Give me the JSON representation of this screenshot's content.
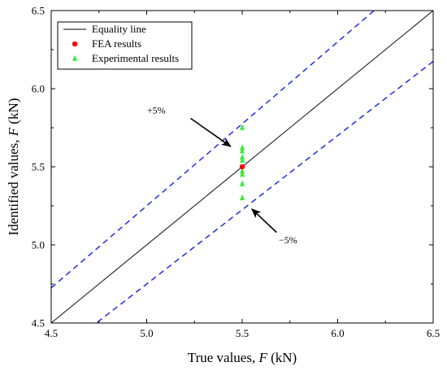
{
  "chart_data": {
    "type": "scatter",
    "xlabel": {
      "prefix": "True values, ",
      "var": "F",
      "suffix": " (kN)"
    },
    "ylabel": {
      "prefix": "Identified values, ",
      "var": "F",
      "suffix": " (kN)"
    },
    "xlim": [
      4.5,
      6.5
    ],
    "ylim": [
      4.5,
      6.5
    ],
    "xticks": [
      4.5,
      5.0,
      5.5,
      6.0,
      6.5
    ],
    "yticks": [
      4.5,
      5.0,
      5.5,
      6.0,
      6.5
    ],
    "xtick_labels": [
      "4.5",
      "5.0",
      "5.5",
      "6.0",
      "6.5"
    ],
    "ytick_labels": [
      "4.5",
      "5.0",
      "5.5",
      "6.0",
      "6.5"
    ],
    "grid": false,
    "legend_position": "top-left",
    "series": [
      {
        "name": "Equality line",
        "kind": "line",
        "color": "#333333",
        "slope": 1.0,
        "dash": "solid"
      },
      {
        "name": "FEA results",
        "kind": "scatter",
        "marker": "circle",
        "color": "#ff0000",
        "points": [
          [
            5.5,
            5.5
          ]
        ]
      },
      {
        "name": "Experimental results",
        "kind": "scatter",
        "marker": "triangle",
        "color": "#33ee33",
        "points": [
          [
            5.5,
            5.75
          ],
          [
            5.5,
            5.62
          ],
          [
            5.5,
            5.6
          ],
          [
            5.5,
            5.56
          ],
          [
            5.5,
            5.54
          ],
          [
            5.5,
            5.47
          ],
          [
            5.5,
            5.45
          ],
          [
            5.5,
            5.39
          ],
          [
            5.5,
            5.3
          ]
        ]
      }
    ],
    "bounds": [
      {
        "slope": 1.05,
        "color": "#1f2fd6",
        "dash": "dashed"
      },
      {
        "slope": 0.95,
        "color": "#1f2fd6",
        "dash": "dashed"
      }
    ],
    "annotations": [
      {
        "text": "+5%",
        "label_at": [
          5.05,
          5.84
        ],
        "arrow_from": [
          5.23,
          5.81
        ],
        "arrow_to": [
          5.44,
          5.63
        ]
      },
      {
        "text": "−5%",
        "label_at": [
          5.74,
          5.01
        ],
        "arrow_from": [
          5.68,
          5.08
        ],
        "arrow_to": [
          5.55,
          5.23
        ]
      }
    ]
  }
}
